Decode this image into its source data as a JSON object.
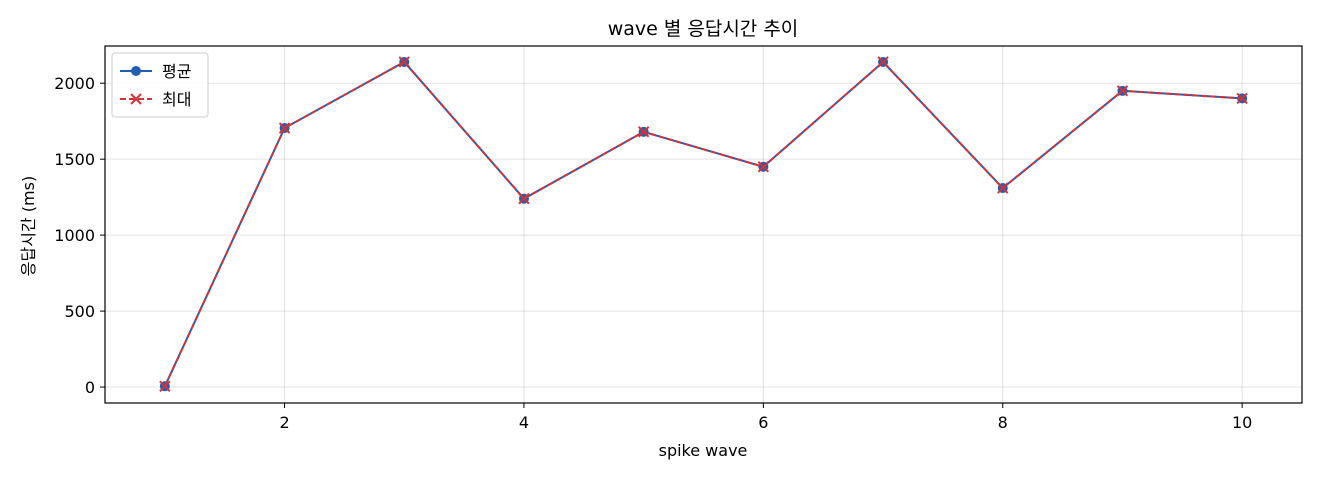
{
  "chart_data": {
    "type": "line",
    "title": "wave 별 응답시간 추이",
    "xlabel": "spike wave",
    "ylabel": "응답시간 (ms)",
    "x": [
      1,
      2,
      3,
      4,
      5,
      6,
      7,
      8,
      9,
      10
    ],
    "xlim": [
      0.5,
      10.5
    ],
    "ylim": [
      -105,
      2245
    ],
    "xticks": [
      2,
      4,
      6,
      8,
      10
    ],
    "yticks": [
      0,
      500,
      1000,
      1500,
      2000
    ],
    "grid": true,
    "legend_position": "top-left",
    "series": [
      {
        "name": "평균",
        "values": [
          5,
          1705,
          2140,
          1240,
          1680,
          1450,
          2140,
          1310,
          1950,
          1900
        ],
        "color": "#1f5fb4",
        "marker": "circle",
        "linestyle": "solid"
      },
      {
        "name": "최대",
        "values": [
          5,
          1705,
          2140,
          1240,
          1680,
          1450,
          2140,
          1310,
          1950,
          1900
        ],
        "color": "#d0343a",
        "marker": "x",
        "linestyle": "dashed"
      }
    ]
  }
}
